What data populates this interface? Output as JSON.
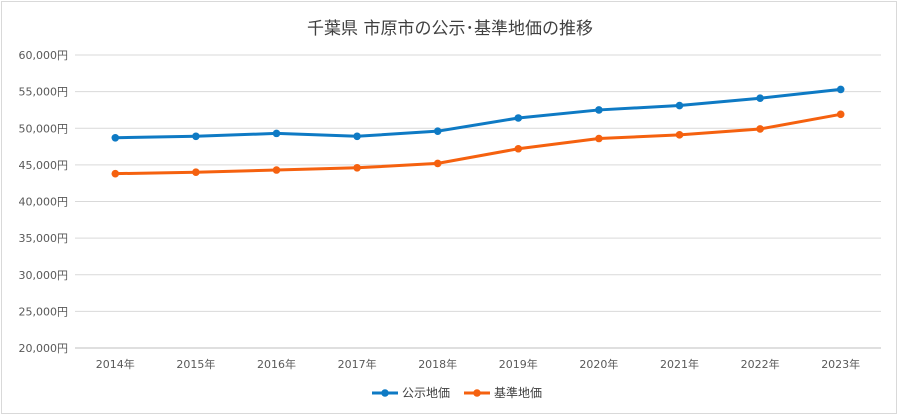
{
  "chart_data": {
    "type": "line",
    "title": "千葉県 市原市の公示･基準地価の推移",
    "xlabel": "",
    "ylabel": "",
    "categories": [
      "2014年",
      "2015年",
      "2016年",
      "2017年",
      "2018年",
      "2019年",
      "2020年",
      "2021年",
      "2022年",
      "2023年"
    ],
    "y_ticks": [
      "20,000円",
      "25,000円",
      "30,000円",
      "35,000円",
      "40,000円",
      "45,000円",
      "50,000円",
      "55,000円",
      "60,000円"
    ],
    "ylim": [
      20000,
      60000
    ],
    "grid": true,
    "legend_position": "bottom",
    "series": [
      {
        "name": "公示地価",
        "color": "#0e7ac4",
        "values": [
          48700,
          48900,
          49300,
          48900,
          49600,
          51400,
          52500,
          53100,
          54100,
          55300
        ]
      },
      {
        "name": "基準地価",
        "color": "#f5610f",
        "values": [
          43800,
          44000,
          44300,
          44600,
          45200,
          47200,
          48600,
          49100,
          49900,
          51900
        ]
      }
    ]
  }
}
